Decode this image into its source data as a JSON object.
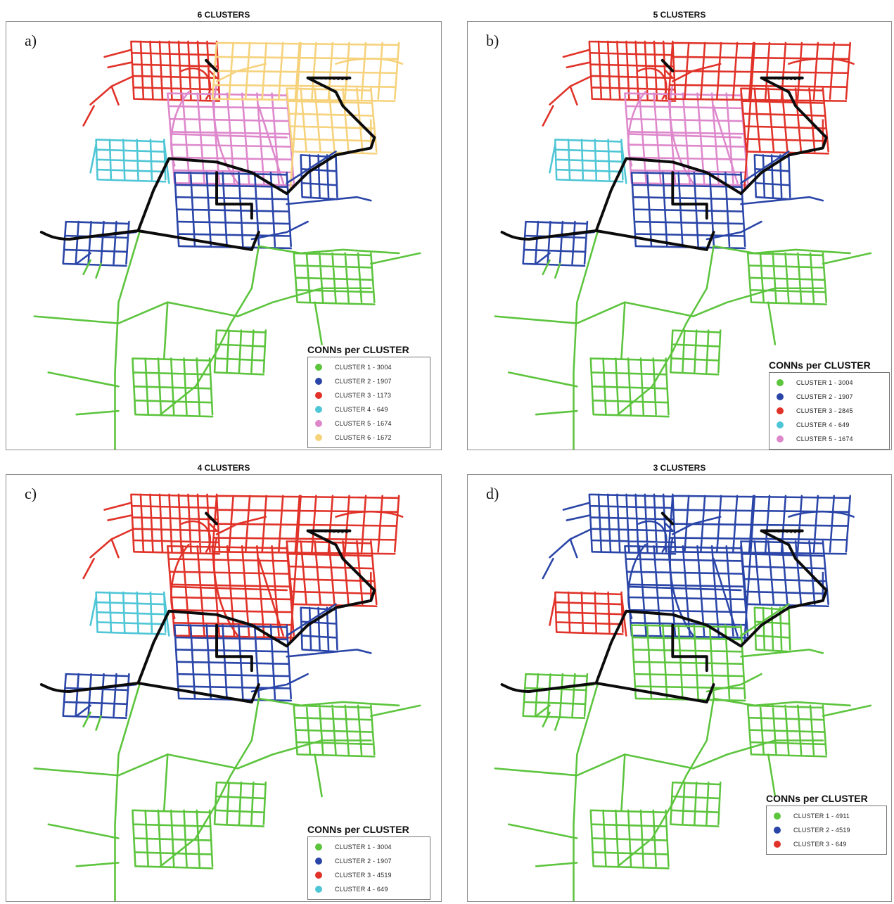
{
  "panels": [
    {
      "title": "6 CLUSTERS",
      "letter": "a)",
      "legend": {
        "title": "CONNs per CLUSTER",
        "items": [
          {
            "label": "CLUSTER  1 - 3004",
            "color": "#5cc43d"
          },
          {
            "label": "CLUSTER  2 - 1907",
            "color": "#2a45a8"
          },
          {
            "label": "CLUSTER  3 - 1173",
            "color": "#e03228"
          },
          {
            "label": "CLUSTER  4 - 649",
            "color": "#4fc6d6"
          },
          {
            "label": "CLUSTER  5 - 1674",
            "color": "#de88cc"
          },
          {
            "label": "CLUSTER  6 - 1672",
            "color": "#f6d27c"
          }
        ]
      },
      "region_clusters": {
        "north_west": 3,
        "north_east": 6,
        "north_center": 5,
        "west": 4,
        "center": 2,
        "south": 1
      }
    },
    {
      "title": "5 CLUSTERS",
      "letter": "b)",
      "legend": {
        "title": "CONNs per CLUSTER",
        "items": [
          {
            "label": "CLUSTER  1 - 3004",
            "color": "#5cc43d"
          },
          {
            "label": "CLUSTER  2 - 1907",
            "color": "#2a45a8"
          },
          {
            "label": "CLUSTER  3 - 2845",
            "color": "#e03228"
          },
          {
            "label": "CLUSTER  4 - 649",
            "color": "#4fc6d6"
          },
          {
            "label": "CLUSTER  5 - 1674",
            "color": "#de88cc"
          }
        ]
      },
      "region_clusters": {
        "north_west": 3,
        "north_east": 3,
        "north_center": 5,
        "west": 4,
        "center": 2,
        "south": 1
      }
    },
    {
      "title": "4 CLUSTERS",
      "letter": "c)",
      "legend": {
        "title": "CONNs per CLUSTER",
        "items": [
          {
            "label": "CLUSTER  1 - 3004",
            "color": "#5cc43d"
          },
          {
            "label": "CLUSTER  2 - 1907",
            "color": "#2a45a8"
          },
          {
            "label": "CLUSTER  3 - 4519",
            "color": "#e03228"
          },
          {
            "label": "CLUSTER  4 - 649",
            "color": "#4fc6d6"
          }
        ]
      },
      "region_clusters": {
        "north_west": 3,
        "north_east": 3,
        "north_center": 3,
        "west": 4,
        "center": 2,
        "south": 1
      }
    },
    {
      "title": "3 CLUSTERS",
      "letter": "d)",
      "legend": {
        "title": "CONNs per CLUSTER",
        "items": [
          {
            "label": "CLUSTER  1 - 4911",
            "color": "#5cc43d"
          },
          {
            "label": "CLUSTER  2 - 4519",
            "color": "#2a45a8"
          },
          {
            "label": "CLUSTER  3 - 649",
            "color": "#e03228"
          }
        ]
      },
      "region_clusters": {
        "north_west": 2,
        "north_east": 2,
        "north_center": 2,
        "west": 3,
        "center": 1,
        "south": 1
      }
    }
  ]
}
